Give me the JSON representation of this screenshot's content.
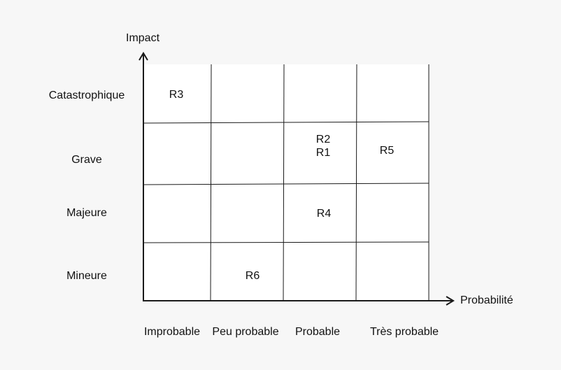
{
  "axes": {
    "y_title": "Impact",
    "x_title": "Probabilité"
  },
  "impact_levels": [
    "Catastrophique",
    "Grave",
    "Majeure",
    "Mineure"
  ],
  "probability_levels": [
    "Improbable",
    "Peu probable",
    "Probable",
    "Très probable"
  ],
  "risks": {
    "catastrophique_improbable": [
      "R3"
    ],
    "grave_probable": [
      "R2",
      "R1"
    ],
    "grave_tres_probable": [
      "R5"
    ],
    "majeure_probable": [
      "R4"
    ],
    "mineure_peu_probable": [
      "R6"
    ]
  },
  "colors": {
    "line": "#1a1a1a",
    "background": "#f7f7f7",
    "grid_fill": "#ffffff"
  }
}
